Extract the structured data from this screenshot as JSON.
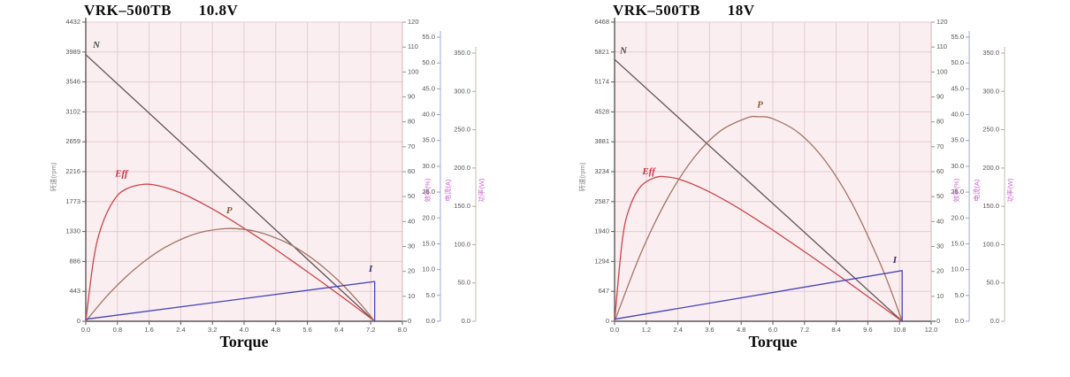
{
  "page": {
    "background": "#ffffff"
  },
  "colors": {
    "plot_bg": "#fbeef1",
    "grid": "#e3cad0",
    "axis": "#5a5a5a",
    "tick_text": "#555555",
    "eff_axis_line": "#d4b6bc",
    "current_axis_line": "#b3b8e0",
    "power_axis_line": "#cfc8b8",
    "axis_name_magenta": "#cc66cc",
    "speed_axis_name_color": "#8a8a8a"
  },
  "chart_data": [
    {
      "type": "line",
      "title": {
        "model": "VRK–500TB",
        "voltage": "10.8V"
      },
      "xlabel": "Torque",
      "x_axis": {
        "min": 0,
        "max": 8,
        "ticks": [
          "0.0",
          "0.8",
          "1.6",
          "2.4",
          "3.2",
          "4.0",
          "4.8",
          "5.6",
          "6.4",
          "7.2",
          "8.0"
        ]
      },
      "speed_axis": {
        "name": "转速(rpm)",
        "min": 0,
        "max": 4432,
        "ticks": [
          "4432",
          "3989",
          "3546",
          "3102",
          "2659",
          "2216",
          "1773",
          "1330",
          "886",
          "443",
          "0"
        ]
      },
      "eff_axis": {
        "name": "效率(%)",
        "min": 0,
        "max": 120,
        "ticks": [
          "120",
          "110",
          "100",
          "90",
          "80",
          "70",
          "60",
          "50",
          "40",
          "30",
          "20",
          "10",
          "0"
        ]
      },
      "current_axis": {
        "name": "电流(A)",
        "min": 0,
        "max": 55,
        "ticks": [
          "55.0",
          "50.0",
          "45.0",
          "40.0",
          "35.0",
          "30.0",
          "25.0",
          "20.0",
          "15.0",
          "10.0",
          "5.0",
          "0.0"
        ]
      },
      "power_axis": {
        "name": "功率(W)",
        "min": 0,
        "max": 350,
        "ticks": [
          "350.0",
          "300.0",
          "250.0",
          "200.0",
          "150.0",
          "100.0",
          "50.0",
          "0.0"
        ]
      },
      "series": [
        {
          "id": "speed-line",
          "label": "N",
          "axis": "speed",
          "color": "#5f5356",
          "label_color": "#4a4a4a",
          "smooth": false,
          "label_at": [
            0.18,
            4050
          ],
          "points": [
            [
              0,
              3950
            ],
            [
              7.3,
              0
            ]
          ]
        },
        {
          "id": "efficiency-curve",
          "label": "Eff",
          "axis": "eff",
          "color": "#cc4449",
          "label_color": "#cc3344",
          "smooth": true,
          "label_at": [
            0.74,
            58
          ],
          "points": [
            [
              0,
              0
            ],
            [
              0.2,
              25.1
            ],
            [
              0.4,
              38.2
            ],
            [
              0.7,
              48.3
            ],
            [
              1.0,
              52.9
            ],
            [
              1.5,
              55.0
            ],
            [
              2.0,
              53.7
            ],
            [
              2.5,
              50.8
            ],
            [
              3.0,
              46.8
            ],
            [
              3.5,
              42.3
            ],
            [
              4.0,
              37.3
            ],
            [
              4.5,
              32.1
            ],
            [
              5.0,
              26.6
            ],
            [
              5.5,
              21.0
            ],
            [
              6.0,
              15.3
            ],
            [
              6.5,
              9.5
            ],
            [
              7.0,
              3.6
            ],
            [
              7.3,
              0
            ]
          ]
        },
        {
          "id": "power-curve",
          "label": "P",
          "axis": "power",
          "color": "#a37364",
          "label_color": "#8a5a3a",
          "smooth": true,
          "label_at": [
            3.55,
            141
          ],
          "points": [
            [
              0,
              0
            ],
            [
              0.5,
              30.9
            ],
            [
              1.0,
              57.2
            ],
            [
              1.5,
              79.0
            ],
            [
              2.0,
              96.3
            ],
            [
              2.5,
              109.0
            ],
            [
              3.0,
              117.2
            ],
            [
              3.65,
              121.0
            ],
            [
              4.3,
              117.2
            ],
            [
              5.0,
              104.4
            ],
            [
              5.5,
              89.9
            ],
            [
              6.0,
              70.8
            ],
            [
              6.5,
              47.2
            ],
            [
              7.0,
              19.1
            ],
            [
              7.3,
              0
            ]
          ]
        },
        {
          "id": "current-line",
          "label": "I",
          "axis": "current",
          "color": "#4343b8",
          "label_color": "#333366",
          "smooth": false,
          "label_at": [
            7.15,
            9.6
          ],
          "points": [
            [
              0,
              0.4
            ],
            [
              7.3,
              7.7
            ],
            [
              7.3,
              0
            ]
          ]
        }
      ]
    },
    {
      "type": "line",
      "title": {
        "model": "VRK–500TB",
        "voltage": "18V"
      },
      "xlabel": "Torque",
      "x_axis": {
        "min": 0,
        "max": 12,
        "ticks": [
          "0.0",
          "1.2",
          "2.4",
          "3.6",
          "4.8",
          "6.0",
          "7.2",
          "8.4",
          "9.6",
          "10.8",
          "12.0"
        ]
      },
      "speed_axis": {
        "name": "转速(rpm)",
        "min": 0,
        "max": 6468,
        "ticks": [
          "6468",
          "5821",
          "5174",
          "4528",
          "3881",
          "3234",
          "2587",
          "1940",
          "1294",
          "647",
          "0"
        ]
      },
      "eff_axis": {
        "name": "效率(%)",
        "min": 0,
        "max": 120,
        "ticks": [
          "120",
          "110",
          "100",
          "90",
          "80",
          "70",
          "60",
          "50",
          "40",
          "30",
          "20",
          "10",
          "0"
        ]
      },
      "current_axis": {
        "name": "电流(A)",
        "min": 0,
        "max": 55,
        "ticks": [
          "55.0",
          "50.0",
          "45.0",
          "40.0",
          "35.0",
          "30.0",
          "25.0",
          "20.0",
          "15.0",
          "10.0",
          "5.0",
          "0.0"
        ]
      },
      "power_axis": {
        "name": "功率(W)",
        "min": 0,
        "max": 350,
        "ticks": [
          "350.0",
          "300.0",
          "250.0",
          "200.0",
          "150.0",
          "100.0",
          "50.0",
          "0.0"
        ]
      },
      "series": [
        {
          "id": "speed-line",
          "label": "N",
          "axis": "speed",
          "color": "#5f5356",
          "label_color": "#4a4a4a",
          "smooth": false,
          "label_at": [
            0.2,
            5790
          ],
          "points": [
            [
              0,
              5660
            ],
            [
              10.9,
              0
            ]
          ]
        },
        {
          "id": "efficiency-curve",
          "label": "Eff",
          "axis": "eff",
          "color": "#cc4449",
          "label_color": "#cc3344",
          "smooth": true,
          "label_at": [
            1.05,
            59
          ],
          "points": [
            [
              0,
              0
            ],
            [
              0.3,
              33.2
            ],
            [
              0.6,
              46.5
            ],
            [
              1.0,
              54.2
            ],
            [
              1.5,
              57.5
            ],
            [
              1.9,
              58.0
            ],
            [
              2.5,
              56.8
            ],
            [
              3.5,
              52.4
            ],
            [
              4.5,
              46.6
            ],
            [
              5.5,
              40.0
            ],
            [
              6.5,
              33.0
            ],
            [
              7.5,
              25.7
            ],
            [
              8.5,
              18.3
            ],
            [
              9.5,
              10.7
            ],
            [
              10.3,
              4.6
            ],
            [
              10.9,
              0
            ]
          ]
        },
        {
          "id": "power-curve",
          "label": "P",
          "axis": "power",
          "color": "#a37364",
          "label_color": "#8a5a3a",
          "smooth": true,
          "label_at": [
            5.4,
            279
          ],
          "points": [
            [
              0,
              0
            ],
            [
              1,
              89.0
            ],
            [
              2,
              160.0
            ],
            [
              3,
              213.1
            ],
            [
              4,
              248.1
            ],
            [
              5,
              265.2
            ],
            [
              5.45,
              267.0
            ],
            [
              6,
              264.3
            ],
            [
              7,
              245.4
            ],
            [
              8,
              208.6
            ],
            [
              9,
              153.7
            ],
            [
              10,
              80.9
            ],
            [
              10.5,
              37.8
            ],
            [
              10.9,
              0
            ]
          ]
        },
        {
          "id": "current-line",
          "label": "I",
          "axis": "current",
          "color": "#4343b8",
          "label_color": "#333366",
          "smooth": false,
          "label_at": [
            10.55,
            11.3
          ],
          "points": [
            [
              0,
              0.4
            ],
            [
              10.9,
              9.8
            ],
            [
              10.9,
              0
            ]
          ]
        }
      ]
    }
  ]
}
